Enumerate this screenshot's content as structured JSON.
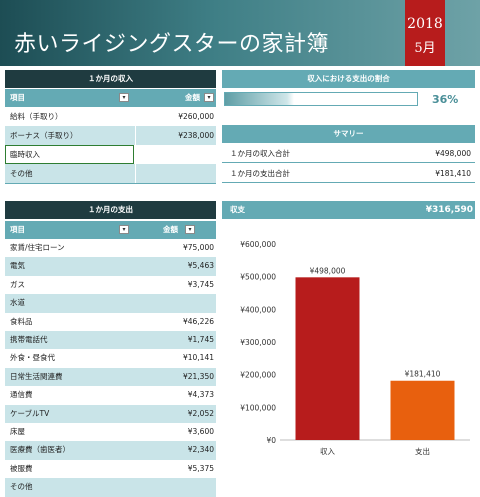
{
  "banner": {
    "title": "赤いライジングスターの家計簿",
    "year": "2018",
    "month": "5月"
  },
  "income": {
    "title": "１か月の収入",
    "col_item": "項目",
    "col_amount": "金額",
    "rows": [
      {
        "item": "給料（手取り）",
        "amount": "¥260,000"
      },
      {
        "item": "ボーナス（手取り）",
        "amount": "¥238,000"
      },
      {
        "item": "臨時収入",
        "amount": ""
      },
      {
        "item": "その他",
        "amount": ""
      }
    ]
  },
  "ratio": {
    "title": "収入における支出の割合",
    "percent": "36%",
    "value": 0.36
  },
  "summary": {
    "title": "サマリー",
    "rows": [
      {
        "label": "１か月の収入合計",
        "value": "¥498,000"
      },
      {
        "label": "１か月の支出合計",
        "value": "¥181,410"
      }
    ]
  },
  "expense": {
    "title": "１か月の支出",
    "col_item": "項目",
    "col_amount": "金額",
    "rows": [
      {
        "item": "家賃/住宅ローン",
        "amount": "¥75,000"
      },
      {
        "item": "電気",
        "amount": "¥5,463"
      },
      {
        "item": "ガス",
        "amount": "¥3,745"
      },
      {
        "item": "水道",
        "amount": ""
      },
      {
        "item": "食料品",
        "amount": "¥46,226"
      },
      {
        "item": "携帯電話代",
        "amount": "¥1,745"
      },
      {
        "item": "外食・昼食代",
        "amount": "¥10,141"
      },
      {
        "item": "日常生活関連費",
        "amount": "¥21,350"
      },
      {
        "item": "通信費",
        "amount": "¥4,373"
      },
      {
        "item": "ケーブルTV",
        "amount": "¥2,052"
      },
      {
        "item": "床屋",
        "amount": "¥3,600"
      },
      {
        "item": "医療費（歯医者）",
        "amount": "¥2,340"
      },
      {
        "item": "被服費",
        "amount": "¥5,375"
      },
      {
        "item": "その他",
        "amount": ""
      }
    ]
  },
  "balance": {
    "label": "収支",
    "value": "¥316,590"
  },
  "chart_data": {
    "type": "bar",
    "categories": [
      "収入",
      "支出"
    ],
    "values": [
      498000,
      181410
    ],
    "value_labels": [
      "¥498,000",
      "¥181,410"
    ],
    "colors": [
      "#b71c1c",
      "#e8600e"
    ],
    "ylim": [
      0,
      600000
    ],
    "yticks": [
      "¥0",
      "¥100,000",
      "¥200,000",
      "¥300,000",
      "¥400,000",
      "¥500,000",
      "¥600,000"
    ],
    "grid": false
  },
  "icons": {
    "dropdown": "dropdown-arrow-icon"
  }
}
